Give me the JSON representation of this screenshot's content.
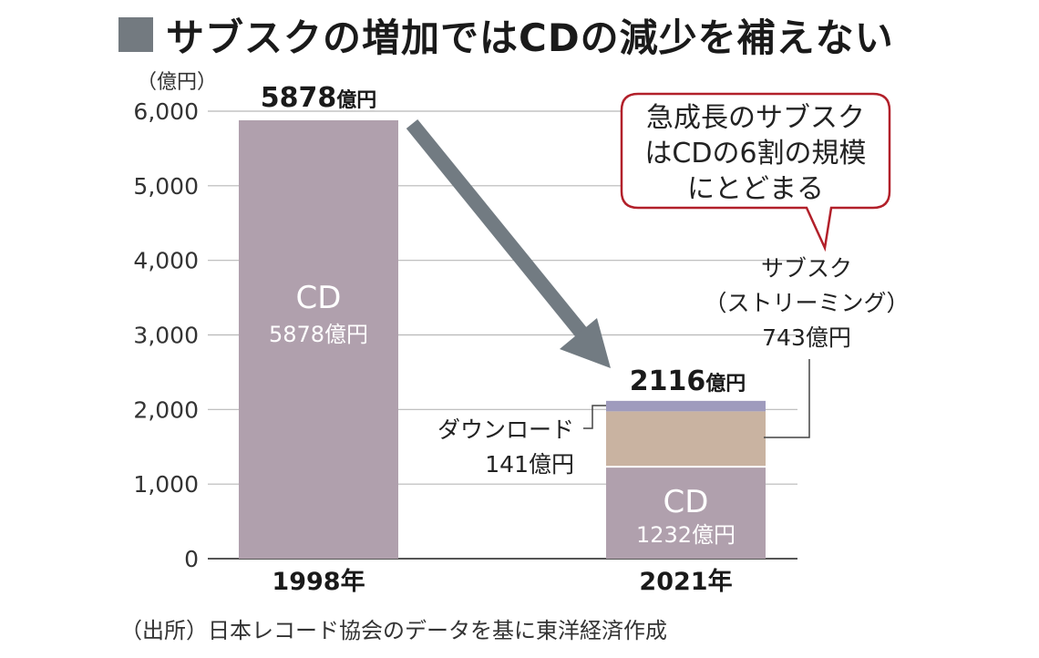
{
  "title": "サブスクの増加ではCDの減少を補えない",
  "source": "（出所）日本レコード協会のデータを基に東洋経済作成",
  "colors": {
    "cd": "#b0a0ad",
    "streaming": "#c9b3a1",
    "download": "#9f9bbd",
    "arrow": "#727b82",
    "bubble_border": "#b2202a",
    "title_square": "#737a80"
  },
  "chart_data": {
    "type": "bar",
    "stacked": true,
    "ylabel": "（億円）",
    "ylim": [
      0,
      6000
    ],
    "yticks": [
      "0",
      "1,000",
      "2,000",
      "3,000",
      "4,000",
      "5,000",
      "6,000"
    ],
    "categories": [
      "1998年",
      "2021年"
    ],
    "series": [
      {
        "name": "CD",
        "values": [
          5878,
          1232
        ],
        "labels": [
          "5878億円",
          "1232億円"
        ]
      },
      {
        "name": "サブスク（ストリーミング）",
        "values": [
          0,
          743
        ]
      },
      {
        "name": "ダウンロード",
        "values": [
          0,
          141
        ]
      }
    ],
    "totals": [
      {
        "num": "5878",
        "unit": "億円"
      },
      {
        "num": "2116",
        "unit": "億円"
      }
    ],
    "annotations": {
      "streaming_label": [
        "サブスク",
        "（ストリーミング）",
        "743億円"
      ],
      "download_label": [
        "ダウンロード",
        "141億円"
      ],
      "bubble": [
        "急成長のサブスク",
        "はCDの6割の規模",
        "にとどまる"
      ]
    },
    "grid": true
  }
}
